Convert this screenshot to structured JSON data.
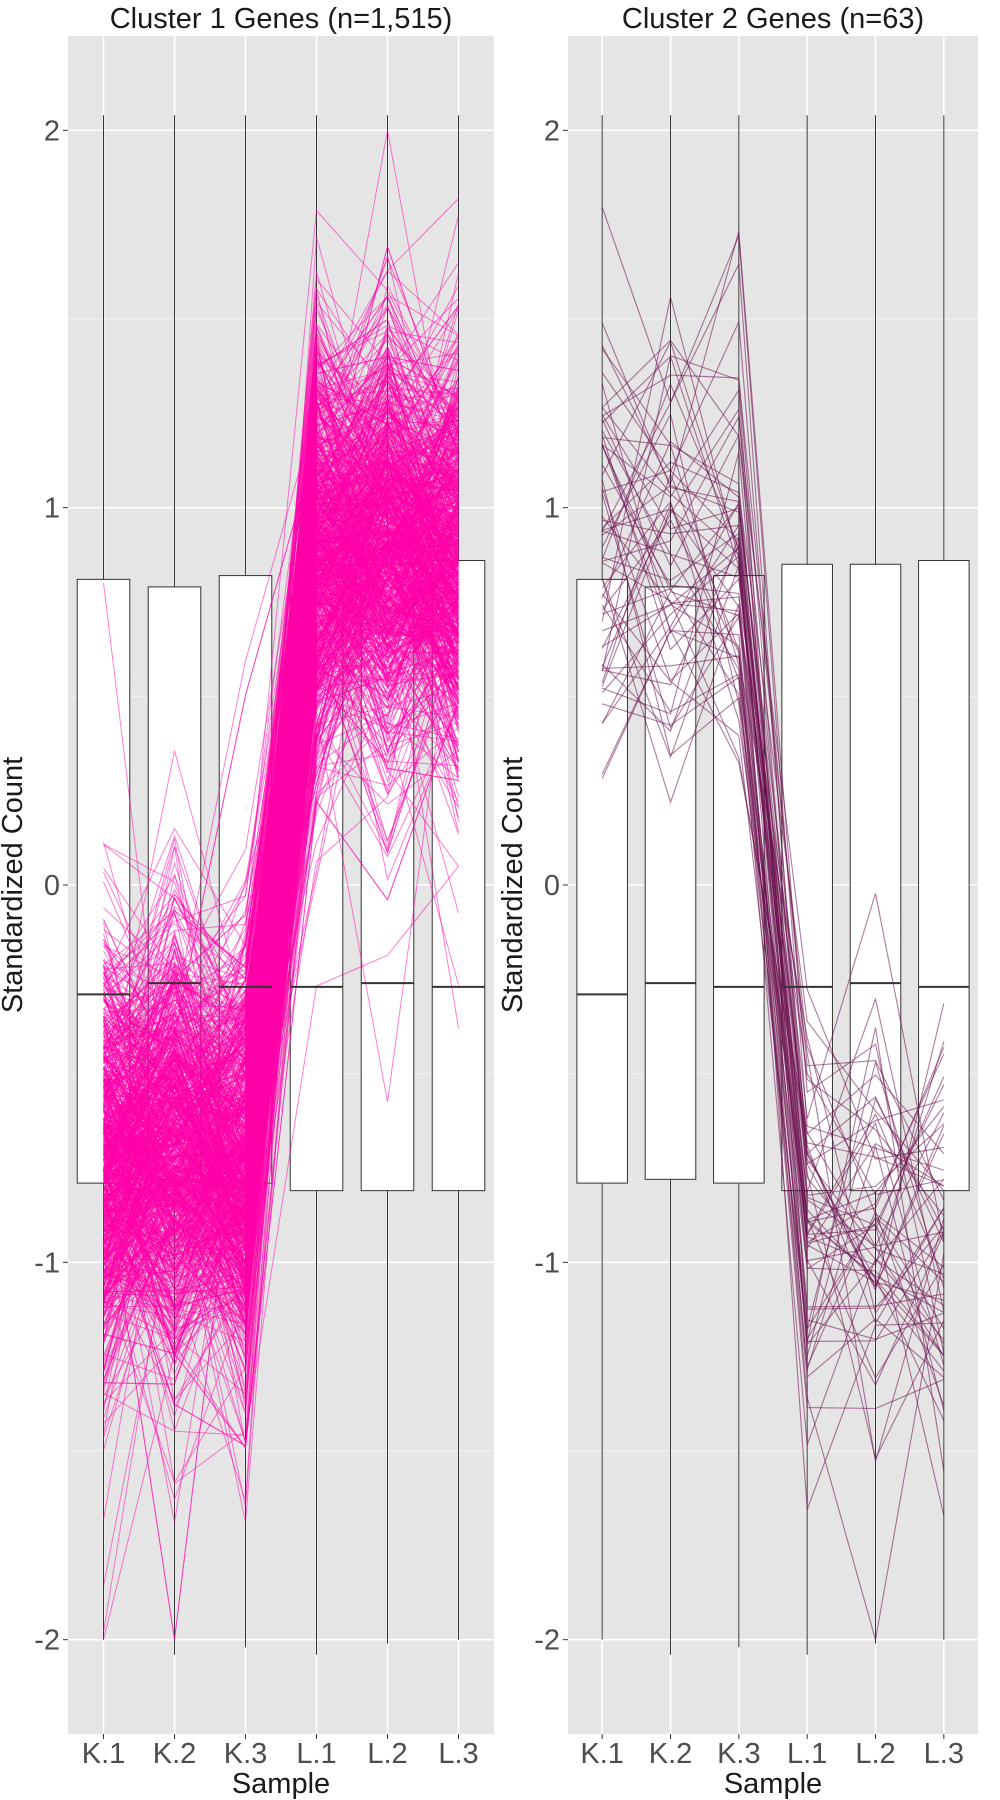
{
  "chart_data": [
    {
      "type": "parallel-coordinates-with-boxplot",
      "title": "Cluster 1 Genes (n=1,515)",
      "xlabel": "Sample",
      "ylabel": "Standardized Count",
      "categories": [
        "K.1",
        "K.2",
        "K.3",
        "L.1",
        "L.2",
        "L.3"
      ],
      "ylim": [
        -2.25,
        2.25
      ],
      "yticks": [
        -2,
        -1,
        0,
        1,
        2
      ],
      "ytick_labels": [
        "-2",
        "-1",
        "0",
        "1",
        "2"
      ],
      "grid": true,
      "line_color": "#ff00aa",
      "gene_count": 1515,
      "boxplots": [
        {
          "category": "K.1",
          "min": -2.0,
          "q1": -0.79,
          "median": -0.29,
          "q3": 0.81,
          "max": 2.04
        },
        {
          "category": "K.2",
          "min": -2.04,
          "q1": -0.78,
          "median": -0.26,
          "q3": 0.79,
          "max": 2.04
        },
        {
          "category": "K.3",
          "min": -2.02,
          "q1": -0.79,
          "median": -0.27,
          "q3": 0.82,
          "max": 2.04
        },
        {
          "category": "L.1",
          "min": -2.04,
          "q1": -0.81,
          "median": -0.27,
          "q3": 0.85,
          "max": 2.04
        },
        {
          "category": "L.2",
          "min": -2.01,
          "q1": -0.81,
          "median": -0.26,
          "q3": 0.85,
          "max": 2.04
        },
        {
          "category": "L.3",
          "min": -2.0,
          "q1": -0.81,
          "median": -0.27,
          "q3": 0.86,
          "max": 2.04
        }
      ],
      "profile_pattern": {
        "K.1": -0.75,
        "K.2": -0.7,
        "K.3": -0.72,
        "L.1": 0.85,
        "L.2": 0.9,
        "L.3": 0.88,
        "spread": 0.28
      }
    },
    {
      "type": "parallel-coordinates-with-boxplot",
      "title": "Cluster 2 Genes (n=63)",
      "xlabel": "Sample",
      "ylabel": "Standardized Count",
      "categories": [
        "K.1",
        "K.2",
        "K.3",
        "L.1",
        "L.2",
        "L.3"
      ],
      "ylim": [
        -2.25,
        2.25
      ],
      "yticks": [
        -2,
        -1,
        0,
        1,
        2
      ],
      "ytick_labels": [
        "-2",
        "-1",
        "0",
        "1",
        "2"
      ],
      "grid": true,
      "line_color": "#6b0f4f",
      "gene_count": 63,
      "boxplots": [
        {
          "category": "K.1",
          "min": -2.0,
          "q1": -0.79,
          "median": -0.29,
          "q3": 0.81,
          "max": 2.04
        },
        {
          "category": "K.2",
          "min": -2.04,
          "q1": -0.78,
          "median": -0.26,
          "q3": 0.79,
          "max": 2.04
        },
        {
          "category": "K.3",
          "min": -2.02,
          "q1": -0.79,
          "median": -0.27,
          "q3": 0.82,
          "max": 2.04
        },
        {
          "category": "L.1",
          "min": -2.04,
          "q1": -0.81,
          "median": -0.27,
          "q3": 0.85,
          "max": 2.04
        },
        {
          "category": "L.2",
          "min": -2.01,
          "q1": -0.81,
          "median": -0.26,
          "q3": 0.85,
          "max": 2.04
        },
        {
          "category": "L.3",
          "min": -2.0,
          "q1": -0.81,
          "median": -0.27,
          "q3": 0.86,
          "max": 2.04
        }
      ],
      "profile_pattern": {
        "K.1": 0.9,
        "K.2": 0.9,
        "K.3": 0.9,
        "L.1": -0.9,
        "L.2": -0.9,
        "L.3": -0.9,
        "spread": 0.32
      }
    }
  ]
}
